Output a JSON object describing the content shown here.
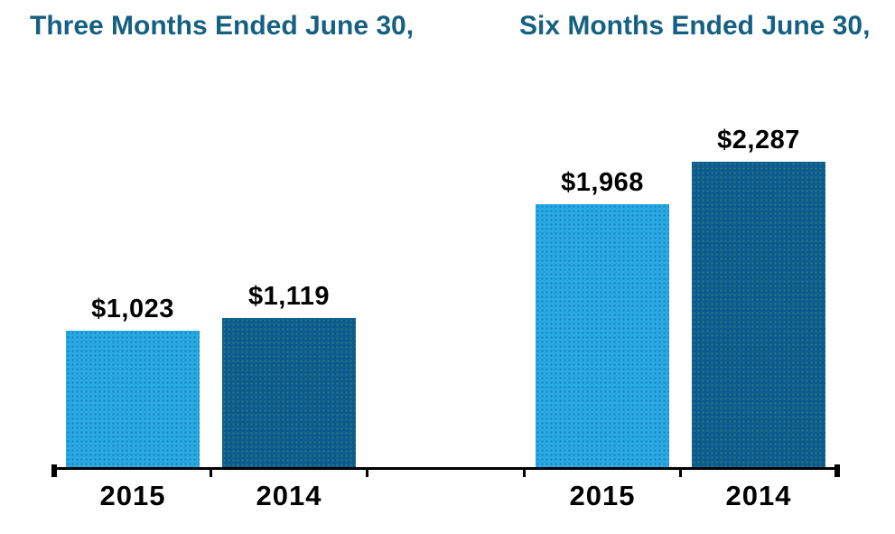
{
  "titles": {
    "left": "Three Months Ended June 30,",
    "right": "Six Months Ended June 30,"
  },
  "colors": {
    "title_text": "#156082",
    "axis": "#000000",
    "value_label_text": "#000000",
    "x_label_text": "#000000",
    "background": "#ffffff"
  },
  "chart_data": {
    "type": "bar",
    "groups": [
      {
        "title": "Three Months Ended June 30,",
        "categories": [
          "2015",
          "2014"
        ],
        "bars": [
          {
            "category": "2015",
            "series": "2015",
            "value": 1023,
            "label": "$1,023"
          },
          {
            "category": "2014",
            "series": "2014",
            "value": 1119,
            "label": "$1,119"
          }
        ]
      },
      {
        "title": "Six Months Ended June 30,",
        "categories": [
          "2015",
          "2014"
        ],
        "bars": [
          {
            "category": "2015",
            "series": "2015",
            "value": 1968,
            "label": "$1,968"
          },
          {
            "category": "2014",
            "series": "2014",
            "value": 2287,
            "label": "$2,287"
          }
        ]
      }
    ],
    "series_colors": {
      "2015": "#29A9E2",
      "2014": "#0D5B8E"
    },
    "value_prefix": "$",
    "ylim": [
      0,
      2450
    ],
    "grid": false,
    "legend": "none",
    "xlabel": "",
    "ylabel": ""
  }
}
